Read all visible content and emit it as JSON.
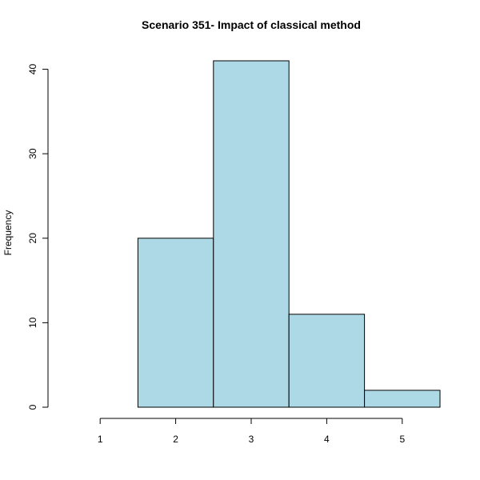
{
  "chart_data": {
    "type": "bar",
    "title": "Scenario 351- Impact of classical method",
    "xlabel": "",
    "ylabel": "Frequency",
    "categories": [
      "1",
      "2",
      "3",
      "4",
      "5"
    ],
    "values": [
      0,
      20,
      41,
      11,
      2
    ],
    "bin_edges": [
      0.5,
      1.5,
      2.5,
      3.5,
      4.5,
      5.5
    ],
    "x_ticks": [
      1,
      2,
      3,
      4,
      5
    ],
    "y_ticks": [
      0,
      10,
      20,
      30,
      40
    ],
    "xlim": [
      0.5,
      5.5
    ],
    "ylim": [
      0,
      41
    ],
    "grid": false,
    "bar_color": "#ADD8E6"
  }
}
